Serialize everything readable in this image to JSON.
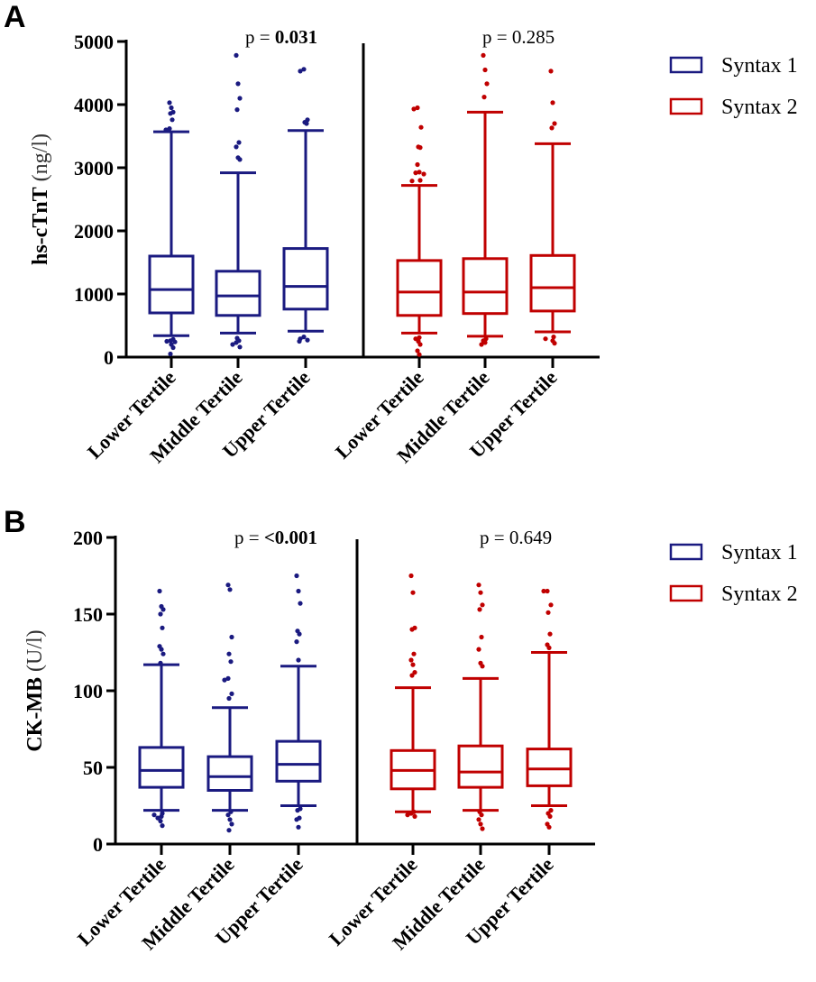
{
  "colors": {
    "syntax1": "#1a1a80",
    "syntax2": "#c00000",
    "axis": "#000000"
  },
  "chart_data": [
    {
      "type": "box",
      "panel_label": "A",
      "ylabel_main": "hs-cTnT",
      "ylabel_unit": "(ng/l)",
      "ylim": [
        0,
        5000
      ],
      "yticks": [
        0,
        1000,
        2000,
        3000,
        4000,
        5000
      ],
      "categories": [
        "Lower Tertile",
        "Middle Tertile",
        "Upper Tertile"
      ],
      "legend": [
        "Syntax 1",
        "Syntax 2"
      ],
      "legend_position": "right",
      "groups": [
        {
          "name": "Syntax 1",
          "p_prefix": "p = ",
          "p_value": "0.031",
          "p_bold": true,
          "boxes": [
            {
              "whisker_low": 340,
              "q1": 700,
              "median": 1070,
              "q3": 1600,
              "whisker_high": 3570,
              "outliers": [
                4030,
                3950,
                3880,
                3860,
                3760,
                3620,
                3600,
                280,
                260,
                250,
                240,
                200,
                150,
                50
              ]
            },
            {
              "whisker_low": 380,
              "q1": 660,
              "median": 970,
              "q3": 1360,
              "whisker_high": 2920,
              "outliers": [
                4780,
                4330,
                4100,
                3920,
                3400,
                3330,
                3160,
                3130,
                300,
                260,
                230,
                200,
                160
              ]
            },
            {
              "whisker_low": 410,
              "q1": 760,
              "median": 1120,
              "q3": 1720,
              "whisker_high": 3590,
              "outliers": [
                4560,
                4530,
                3760,
                3720,
                3700,
                320,
                290,
                270,
                250
              ]
            }
          ]
        },
        {
          "name": "Syntax 2",
          "p_prefix": "p = ",
          "p_value": "0.285",
          "p_bold": false,
          "boxes": [
            {
              "whisker_low": 380,
              "q1": 660,
              "median": 1030,
              "q3": 1530,
              "whisker_high": 2720,
              "outliers": [
                3950,
                3930,
                3640,
                3330,
                3320,
                3050,
                2930,
                2920,
                2900,
                2800,
                2790,
                310,
                290,
                250,
                200,
                100,
                40
              ]
            },
            {
              "whisker_low": 330,
              "q1": 690,
              "median": 1030,
              "q3": 1560,
              "whisker_high": 3880,
              "outliers": [
                4780,
                4550,
                4330,
                4120,
                290,
                260,
                230,
                200
              ]
            },
            {
              "whisker_low": 400,
              "q1": 730,
              "median": 1100,
              "q3": 1610,
              "whisker_high": 3380,
              "outliers": [
                4530,
                4030,
                3700,
                3630,
                320,
                290,
                260,
                220
              ]
            }
          ]
        }
      ]
    },
    {
      "type": "box",
      "panel_label": "B",
      "ylabel_main": "CK-MB",
      "ylabel_unit": "(U/l)",
      "ylim": [
        0,
        200
      ],
      "yticks": [
        0,
        50,
        100,
        150,
        200
      ],
      "categories": [
        "Lower Tertile",
        "Middle Tertile",
        "Upper Tertile"
      ],
      "legend": [
        "Syntax 1",
        "Syntax 2"
      ],
      "legend_position": "right",
      "groups": [
        {
          "name": "Syntax 1",
          "p_prefix": "p = ",
          "p_value": "<0.001",
          "p_bold": true,
          "boxes": [
            {
              "whisker_low": 22,
              "q1": 37,
              "median": 48,
              "q3": 63,
              "whisker_high": 117,
              "outliers": [
                165,
                155,
                153,
                150,
                141,
                129,
                127,
                124,
                118,
                20,
                19,
                18,
                17,
                15,
                12
              ]
            },
            {
              "whisker_low": 22,
              "q1": 35,
              "median": 44,
              "q3": 57,
              "whisker_high": 89,
              "outliers": [
                169,
                166,
                135,
                124,
                119,
                108,
                107,
                98,
                95,
                21,
                19,
                16,
                13,
                9
              ]
            },
            {
              "whisker_low": 25,
              "q1": 41,
              "median": 52,
              "q3": 67,
              "whisker_high": 116,
              "outliers": [
                175,
                165,
                157,
                139,
                137,
                132,
                120,
                23,
                22,
                17,
                16,
                11
              ]
            }
          ]
        },
        {
          "name": "Syntax 2",
          "p_prefix": "p = ",
          "p_value": "0.649",
          "p_bold": false,
          "boxes": [
            {
              "whisker_low": 21,
              "q1": 36,
              "median": 48,
              "q3": 61,
              "whisker_high": 102,
              "outliers": [
                175,
                164,
                141,
                140,
                124,
                120,
                117,
                112,
                110,
                21,
                20,
                19,
                18
              ]
            },
            {
              "whisker_low": 22,
              "q1": 37,
              "median": 47,
              "q3": 64,
              "whisker_high": 108,
              "outliers": [
                169,
                164,
                156,
                153,
                135,
                127,
                118,
                116,
                21,
                19,
                16,
                13,
                10
              ]
            },
            {
              "whisker_low": 25,
              "q1": 38,
              "median": 49,
              "q3": 62,
              "whisker_high": 125,
              "outliers": [
                165,
                165,
                156,
                151,
                137,
                130,
                128,
                22,
                20,
                18,
                13,
                11
              ]
            }
          ]
        }
      ]
    }
  ]
}
